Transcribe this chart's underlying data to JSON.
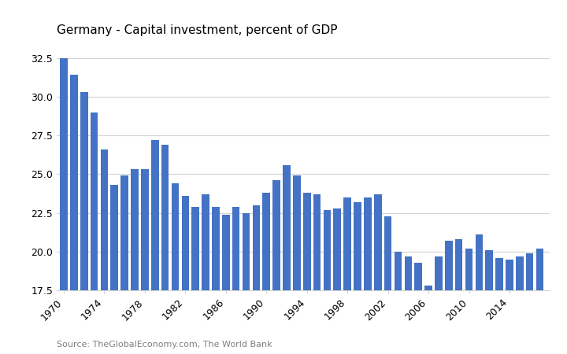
{
  "title": "Germany - Capital investment, percent of GDP",
  "source": "Source: TheGlobalEconomy.com, The World Bank",
  "bar_color": "#4472C4",
  "background_color": "#ffffff",
  "years": [
    1970,
    1971,
    1972,
    1973,
    1974,
    1975,
    1976,
    1977,
    1978,
    1979,
    1980,
    1981,
    1982,
    1983,
    1984,
    1985,
    1986,
    1987,
    1988,
    1989,
    1990,
    1991,
    1992,
    1993,
    1994,
    1995,
    1996,
    1997,
    1998,
    1999,
    2000,
    2001,
    2002,
    2003,
    2004,
    2005,
    2006,
    2007,
    2008,
    2009,
    2010,
    2011,
    2012,
    2013,
    2014,
    2015,
    2016,
    2017
  ],
  "values": [
    32.5,
    31.4,
    30.3,
    29.0,
    26.6,
    24.3,
    24.9,
    25.3,
    25.3,
    27.2,
    26.9,
    24.4,
    23.6,
    22.9,
    23.7,
    22.9,
    22.4,
    22.9,
    22.5,
    23.0,
    23.8,
    24.6,
    25.6,
    24.9,
    23.8,
    23.7,
    22.7,
    22.8,
    23.5,
    23.2,
    23.5,
    23.7,
    22.3,
    20.0,
    19.7,
    19.3,
    17.8,
    19.7,
    20.7,
    20.8,
    20.2,
    21.1,
    20.1,
    19.6,
    19.5,
    19.7,
    19.9,
    20.2
  ],
  "ylim": [
    17.5,
    33.5
  ],
  "yticks": [
    17.5,
    20.0,
    22.5,
    25.0,
    27.5,
    30.0,
    32.5
  ],
  "xtick_years": [
    1970,
    1974,
    1978,
    1982,
    1986,
    1990,
    1994,
    1998,
    2002,
    2006,
    2010,
    2014
  ],
  "grid_color": "#d3d3d3",
  "title_fontsize": 11,
  "tick_fontsize": 9,
  "source_fontsize": 8
}
